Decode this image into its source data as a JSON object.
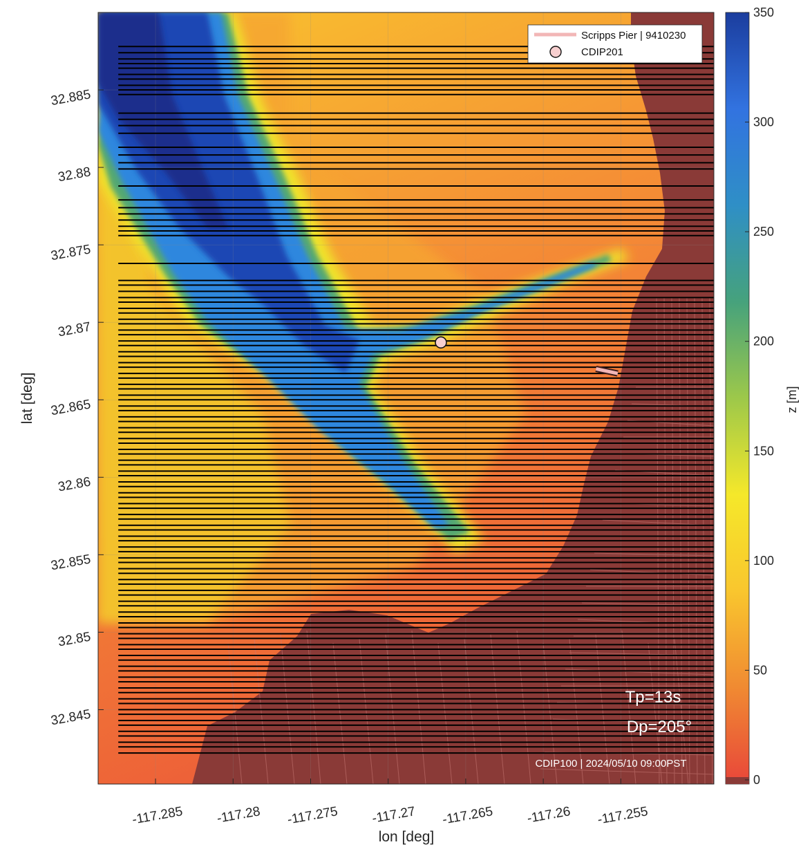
{
  "chart_data": {
    "type": "heatmap",
    "title": "",
    "xlabel": "lon [deg]",
    "ylabel": "lat [deg]",
    "colorbar_label": "z [m]",
    "xlim": [
      -117.2887,
      -117.249
    ],
    "ylim": [
      32.8402,
      32.89
    ],
    "clim": [
      0,
      350
    ],
    "colormap": "parula (flipped)",
    "colormap_stops": [
      "#e8463a",
      "#f08a32",
      "#f9c62e",
      "#f5e82a",
      "#9dc84a",
      "#46a27c",
      "#2f8fc6",
      "#3273e0",
      "#1b3d9e"
    ],
    "land_color": "#8a3a37",
    "grid": true,
    "x_ticks": [
      {
        "value": -117.285,
        "label": "-117.285"
      },
      {
        "value": -117.28,
        "label": "-117.28"
      },
      {
        "value": -117.275,
        "label": "-117.275"
      },
      {
        "value": -117.27,
        "label": "-117.27"
      },
      {
        "value": -117.265,
        "label": "-117.265"
      },
      {
        "value": -117.26,
        "label": "-117.26"
      },
      {
        "value": -117.255,
        "label": "-117.255"
      }
    ],
    "y_ticks": [
      {
        "value": 32.845,
        "label": "32.845"
      },
      {
        "value": 32.85,
        "label": "32.85"
      },
      {
        "value": 32.855,
        "label": "32.855"
      },
      {
        "value": 32.86,
        "label": "32.86"
      },
      {
        "value": 32.865,
        "label": "32.865"
      },
      {
        "value": 32.87,
        "label": "32.87"
      },
      {
        "value": 32.875,
        "label": "32.875"
      },
      {
        "value": 32.88,
        "label": "32.88"
      },
      {
        "value": 32.885,
        "label": "32.885"
      }
    ],
    "colorbar_ticks": [
      {
        "value": 0,
        "label": "0"
      },
      {
        "value": 50,
        "label": "50"
      },
      {
        "value": 100,
        "label": "100"
      },
      {
        "value": 150,
        "label": "150"
      },
      {
        "value": 200,
        "label": "200"
      },
      {
        "value": 250,
        "label": "250"
      },
      {
        "value": 300,
        "label": "300"
      },
      {
        "value": 350,
        "label": "350"
      }
    ],
    "transect_lines": {
      "lon_start": -117.2874,
      "lon_end": -117.249,
      "lats": [
        32.8878,
        32.8874,
        32.887,
        32.8867,
        32.8864,
        32.886,
        32.8857,
        32.8853,
        32.885,
        32.8847,
        32.8835,
        32.8831,
        32.8827,
        32.8822,
        32.8813,
        32.8808,
        32.8803,
        32.8799,
        32.8788,
        32.8779,
        32.8774,
        32.877,
        32.8766,
        32.8762,
        32.8759,
        32.8756,
        32.8738,
        32.8727,
        32.8724,
        32.872,
        32.8716,
        32.8713,
        32.8709,
        32.8706,
        32.8702,
        32.8699,
        32.8695,
        32.8692,
        32.8688,
        32.8685,
        32.8681,
        32.8678,
        32.8674,
        32.8671,
        32.8667,
        32.8664,
        32.866,
        32.8657,
        32.8653,
        32.865,
        32.8646,
        32.8643,
        32.8639,
        32.8636,
        32.8632,
        32.8629,
        32.8625,
        32.8622,
        32.8618,
        32.8615,
        32.8611,
        32.8608,
        32.8604,
        32.8601,
        32.8597,
        32.8594,
        32.859,
        32.8587,
        32.8583,
        32.858,
        32.8576,
        32.8573,
        32.8569,
        32.8566,
        32.8562,
        32.8559,
        32.8555,
        32.8552,
        32.8548,
        32.8545,
        32.8541,
        32.8538,
        32.8534,
        32.8531,
        32.8527,
        32.8524,
        32.852,
        32.8517,
        32.8513,
        32.851,
        32.8506,
        32.8503,
        32.8499,
        32.8496,
        32.8492,
        32.8489,
        32.8485,
        32.8482,
        32.8478,
        32.8475,
        32.8471,
        32.8468,
        32.8464,
        32.8461,
        32.8457,
        32.8454,
        32.845,
        32.8447,
        32.8443,
        32.844,
        32.8436,
        32.8433,
        32.8429,
        32.8426,
        32.8422
      ]
    },
    "series": [
      {
        "name": "Scripps Pier | 9410230",
        "type": "line",
        "color": "#f2b6b6",
        "lon": [
          -117.2566,
          -117.2552
        ],
        "lat": [
          32.867,
          32.8667
        ]
      },
      {
        "name": "CDIP201",
        "type": "marker",
        "color": "#f7cfcf",
        "lon": [
          -117.2666
        ],
        "lat": [
          32.8687
        ]
      }
    ],
    "legend": {
      "position": "top-right",
      "entries": [
        "Scripps Pier | 9410230",
        "CDIP201"
      ]
    },
    "annotations": {
      "tp": "Tp=13s",
      "dp": "Dp=205°",
      "stamp": "CDIP100 | 2024/05/10 09:00PST"
    }
  }
}
